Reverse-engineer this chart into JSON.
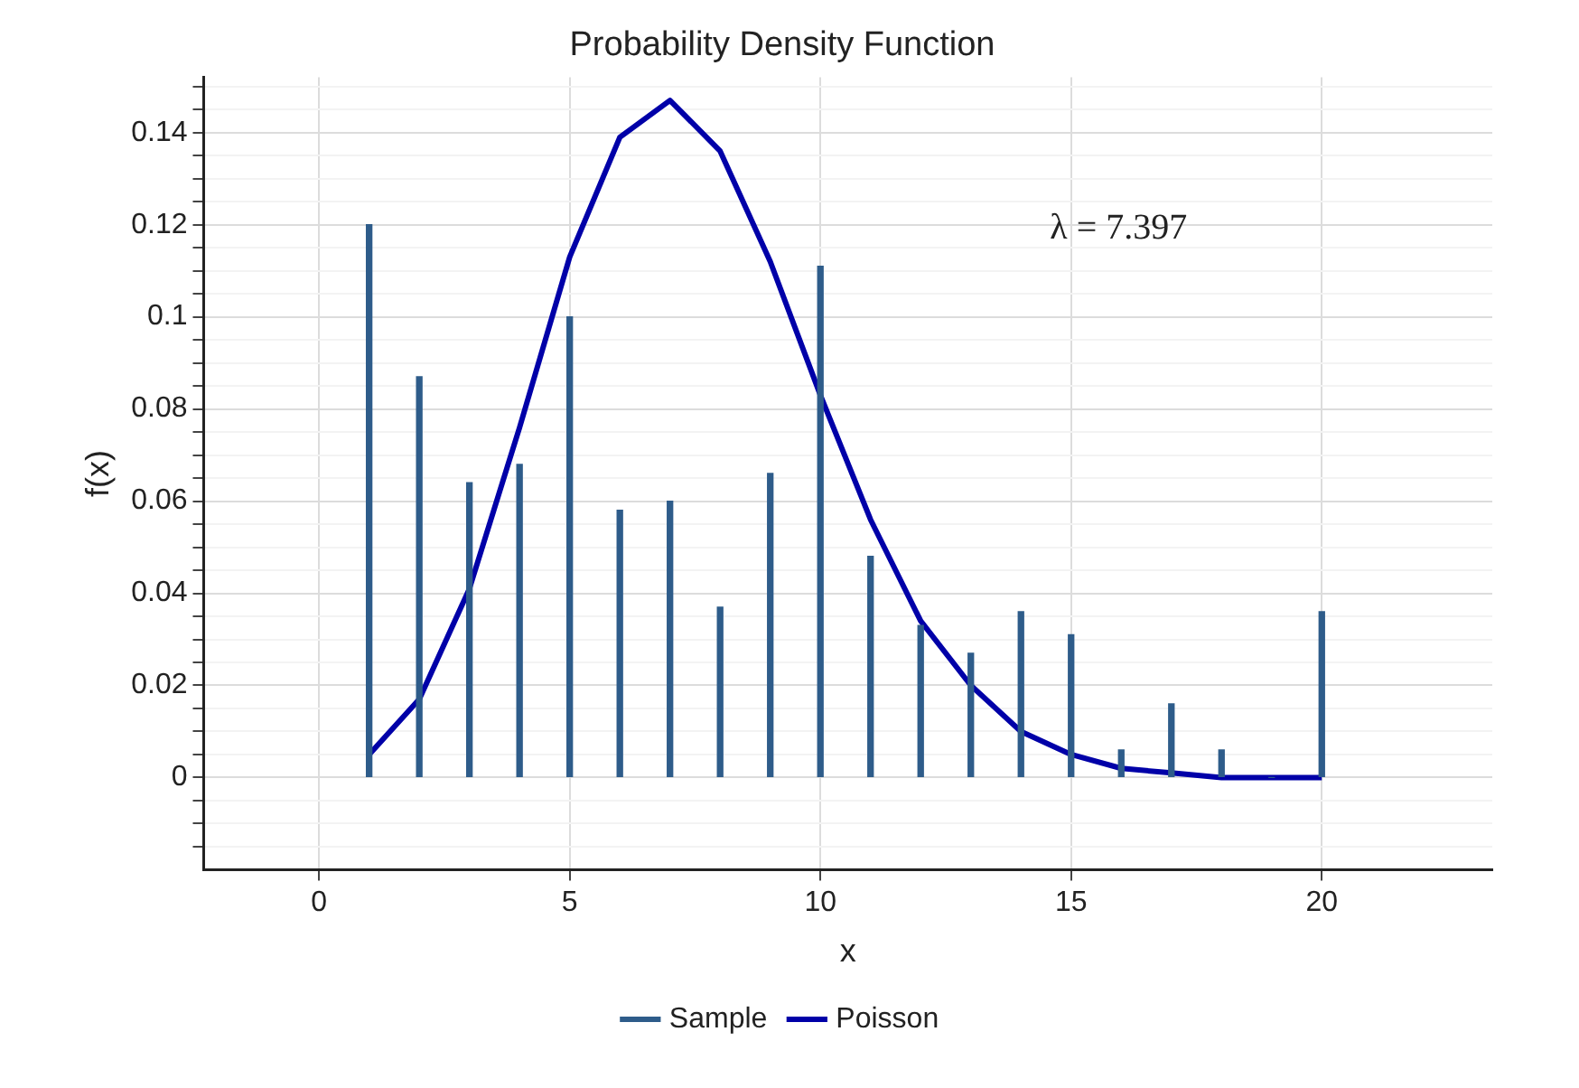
{
  "chart_data": {
    "type": "bar",
    "title": "Probability Density Function",
    "xlabel": "x",
    "ylabel": "f(x)",
    "x": [
      1,
      2,
      3,
      4,
      5,
      6,
      7,
      8,
      9,
      10,
      11,
      12,
      13,
      14,
      15,
      16,
      17,
      18,
      19,
      20
    ],
    "series": [
      {
        "name": "Sample",
        "color": "#2e5c8a",
        "values": [
          0.12,
          0.087,
          0.064,
          0.068,
          0.1,
          0.058,
          0.06,
          0.037,
          0.066,
          0.111,
          0.048,
          0.033,
          0.027,
          0.036,
          0.031,
          0.006,
          0.016,
          0.006,
          0,
          0.036
        ]
      },
      {
        "name": "Poisson",
        "type": "line",
        "color": "#0000a8",
        "values": [
          0.005,
          0.017,
          0.041,
          0.076,
          0.113,
          0.139,
          0.147,
          0.136,
          0.112,
          0.083,
          0.056,
          0.034,
          0.02,
          0.01,
          0.005,
          0.002,
          0.001,
          0,
          0,
          0
        ]
      }
    ],
    "xlim": [
      -2.3,
      23.4
    ],
    "xticks": [
      0,
      5,
      10,
      15,
      20
    ],
    "ylim": [
      -0.02,
      0.152
    ],
    "yticks": [
      {
        "value": -0.015,
        "label": null
      },
      {
        "value": -0.01,
        "label": null
      },
      {
        "value": -0.005,
        "label": null
      },
      0,
      {
        "value": 0.005,
        "label": null
      },
      {
        "value": 0.01,
        "label": null
      },
      {
        "value": 0.015,
        "label": null
      },
      0.02,
      {
        "value": 0.025,
        "label": null
      },
      {
        "value": 0.03,
        "label": null
      },
      {
        "value": 0.035,
        "label": null
      },
      0.04,
      {
        "value": 0.045,
        "label": null
      },
      {
        "value": 0.05,
        "label": null
      },
      {
        "value": 0.055,
        "label": null
      },
      0.06,
      {
        "value": 0.065,
        "label": null
      },
      {
        "value": 0.07,
        "label": null
      },
      {
        "value": 0.075,
        "label": null
      },
      0.08,
      {
        "value": 0.085,
        "label": null
      },
      {
        "value": 0.09,
        "label": null
      },
      {
        "value": 0.095,
        "label": null
      },
      0.1,
      {
        "value": 0.105,
        "label": null
      },
      {
        "value": 0.11,
        "label": null
      },
      {
        "value": 0.115,
        "label": null
      },
      0.12,
      {
        "value": 0.125,
        "label": null
      },
      {
        "value": 0.13,
        "label": null
      },
      {
        "value": 0.135,
        "label": null
      },
      0.14,
      {
        "value": 0.145,
        "label": null
      },
      {
        "value": 0.15,
        "label": null
      }
    ],
    "annotations": [
      "λ = 7.397"
    ],
    "grid": true,
    "legend": "bottom",
    "marker": "none",
    "line_style": "solid"
  }
}
